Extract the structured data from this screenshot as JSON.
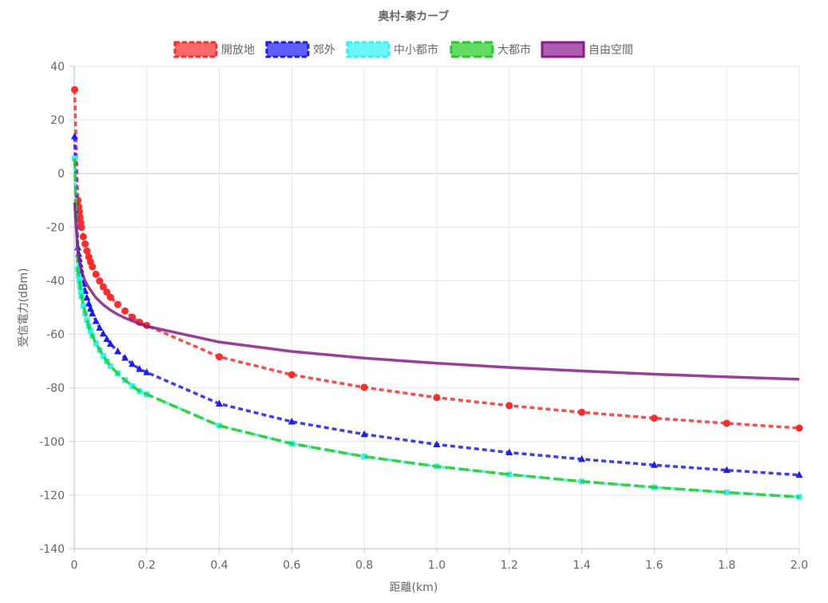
{
  "chart_data": {
    "type": "line",
    "title": "奥村-秦カーブ",
    "xlabel": "距離(km)",
    "ylabel": "受信電力(dBm)",
    "xlim": [
      0,
      2.0
    ],
    "ylim": [
      -140,
      40
    ],
    "x_ticks": [
      "0",
      "0.2",
      "0.4",
      "0.6",
      "0.8",
      "1.0",
      "1.2",
      "1.4",
      "1.6",
      "1.8",
      "2.0"
    ],
    "y_ticks": [
      "40",
      "20",
      "0",
      "-20",
      "-40",
      "-60",
      "-80",
      "-100",
      "-120",
      "-140"
    ],
    "grid": true,
    "legend_position": "top",
    "series": [
      {
        "name": "開放地",
        "color": "#ff2a2a",
        "dash": "dashed",
        "marker": "circle",
        "points": [
          [
            0.001,
            31.3
          ],
          [
            0.01,
            -10.1
          ],
          [
            0.012,
            -12.4
          ],
          [
            0.014,
            -14.3
          ],
          [
            0.016,
            -16.3
          ],
          [
            0.018,
            -18.3
          ],
          [
            0.02,
            -20.1
          ],
          [
            0.025,
            -23.6
          ],
          [
            0.03,
            -26.3
          ],
          [
            0.035,
            -28.9
          ],
          [
            0.04,
            -31.1
          ],
          [
            0.045,
            -33.0
          ],
          [
            0.05,
            -34.8
          ],
          [
            0.06,
            -37.6
          ],
          [
            0.07,
            -40.1
          ],
          [
            0.08,
            -42.3
          ],
          [
            0.09,
            -44.3
          ],
          [
            0.1,
            -46.2
          ],
          [
            0.12,
            -48.9
          ],
          [
            0.14,
            -51.3
          ],
          [
            0.16,
            -53.6
          ],
          [
            0.18,
            -55.5
          ],
          [
            0.2,
            -56.7
          ],
          [
            0.4,
            -68.4
          ],
          [
            0.6,
            -75.1
          ],
          [
            0.8,
            -79.8
          ],
          [
            1.0,
            -83.6
          ],
          [
            1.2,
            -86.6
          ],
          [
            1.4,
            -89.1
          ],
          [
            1.6,
            -91.3
          ],
          [
            1.8,
            -93.2
          ],
          [
            2.0,
            -95.0
          ]
        ]
      },
      {
        "name": "郊外",
        "color": "#1a1aff",
        "dash": "dashed",
        "marker": "triangle",
        "points": [
          [
            0.001,
            13.8
          ],
          [
            0.01,
            -27.6
          ],
          [
            0.012,
            -30.0
          ],
          [
            0.014,
            -31.9
          ],
          [
            0.016,
            -33.9
          ],
          [
            0.018,
            -35.9
          ],
          [
            0.02,
            -37.6
          ],
          [
            0.025,
            -41.2
          ],
          [
            0.03,
            -43.9
          ],
          [
            0.035,
            -46.4
          ],
          [
            0.04,
            -48.6
          ],
          [
            0.045,
            -50.5
          ],
          [
            0.05,
            -52.3
          ],
          [
            0.06,
            -55.1
          ],
          [
            0.07,
            -57.6
          ],
          [
            0.08,
            -59.8
          ],
          [
            0.09,
            -61.8
          ],
          [
            0.1,
            -63.6
          ],
          [
            0.12,
            -66.4
          ],
          [
            0.14,
            -68.8
          ],
          [
            0.16,
            -71.1
          ],
          [
            0.18,
            -73.0
          ],
          [
            0.2,
            -74.2
          ],
          [
            0.4,
            -85.9
          ],
          [
            0.6,
            -92.6
          ],
          [
            0.8,
            -97.3
          ],
          [
            1.0,
            -101.1
          ],
          [
            1.2,
            -104.1
          ],
          [
            1.4,
            -106.6
          ],
          [
            1.6,
            -108.8
          ],
          [
            1.8,
            -110.7
          ],
          [
            2.0,
            -112.5
          ]
        ]
      },
      {
        "name": "中小都市",
        "color": "#2af5f5",
        "dash": "dashed",
        "marker": "square",
        "points": [
          [
            0.001,
            5.6
          ],
          [
            0.01,
            -35.8
          ],
          [
            0.012,
            -38.2
          ],
          [
            0.014,
            -40.1
          ],
          [
            0.016,
            -42.1
          ],
          [
            0.018,
            -44.1
          ],
          [
            0.02,
            -45.9
          ],
          [
            0.025,
            -49.4
          ],
          [
            0.03,
            -52.1
          ],
          [
            0.035,
            -54.7
          ],
          [
            0.04,
            -56.9
          ],
          [
            0.045,
            -58.8
          ],
          [
            0.05,
            -60.6
          ],
          [
            0.06,
            -63.4
          ],
          [
            0.07,
            -65.9
          ],
          [
            0.08,
            -68.1
          ],
          [
            0.09,
            -70.1
          ],
          [
            0.1,
            -71.9
          ],
          [
            0.12,
            -74.6
          ],
          [
            0.14,
            -77.1
          ],
          [
            0.16,
            -79.3
          ],
          [
            0.18,
            -81.2
          ],
          [
            0.2,
            -82.4
          ],
          [
            0.4,
            -94.1
          ],
          [
            0.6,
            -100.8
          ],
          [
            0.8,
            -105.6
          ],
          [
            1.0,
            -109.3
          ],
          [
            1.2,
            -112.3
          ],
          [
            1.4,
            -114.9
          ],
          [
            1.6,
            -117.1
          ],
          [
            1.8,
            -119.0
          ],
          [
            2.0,
            -120.7
          ]
        ]
      },
      {
        "name": "大都市",
        "color": "#22cc22",
        "dash": "dashed-long",
        "marker": "none",
        "points": [
          [
            0.001,
            5.6
          ],
          [
            0.01,
            -35.8
          ],
          [
            0.02,
            -45.9
          ],
          [
            0.03,
            -52.1
          ],
          [
            0.04,
            -56.9
          ],
          [
            0.05,
            -60.6
          ],
          [
            0.06,
            -63.4
          ],
          [
            0.08,
            -68.1
          ],
          [
            0.1,
            -71.9
          ],
          [
            0.12,
            -74.6
          ],
          [
            0.14,
            -77.1
          ],
          [
            0.16,
            -79.3
          ],
          [
            0.18,
            -81.2
          ],
          [
            0.2,
            -82.4
          ],
          [
            0.4,
            -94.1
          ],
          [
            0.6,
            -100.8
          ],
          [
            0.8,
            -105.6
          ],
          [
            1.0,
            -109.3
          ],
          [
            1.2,
            -112.3
          ],
          [
            1.4,
            -114.9
          ],
          [
            1.6,
            -117.1
          ],
          [
            1.8,
            -119.0
          ],
          [
            2.0,
            -120.7
          ]
        ]
      },
      {
        "name": "自由空間",
        "color": "#8b1a8b",
        "dash": "solid",
        "marker": "none",
        "points": [
          [
            0.001,
            -10.8
          ],
          [
            0.01,
            -29.4
          ],
          [
            0.02,
            -36.6
          ],
          [
            0.03,
            -40.2
          ],
          [
            0.04,
            -42.5
          ],
          [
            0.05,
            -44.5
          ],
          [
            0.06,
            -46.4
          ],
          [
            0.07,
            -47.7
          ],
          [
            0.08,
            -49.0
          ],
          [
            0.1,
            -51.0
          ],
          [
            0.12,
            -52.6
          ],
          [
            0.14,
            -53.9
          ],
          [
            0.16,
            -55.0
          ],
          [
            0.18,
            -56.1
          ],
          [
            0.2,
            -57.0
          ],
          [
            0.4,
            -62.9
          ],
          [
            0.6,
            -66.4
          ],
          [
            0.8,
            -68.9
          ],
          [
            1.0,
            -70.8
          ],
          [
            1.2,
            -72.4
          ],
          [
            1.4,
            -73.7
          ],
          [
            1.6,
            -74.9
          ],
          [
            1.8,
            -75.9
          ],
          [
            2.0,
            -76.8
          ]
        ]
      }
    ]
  }
}
